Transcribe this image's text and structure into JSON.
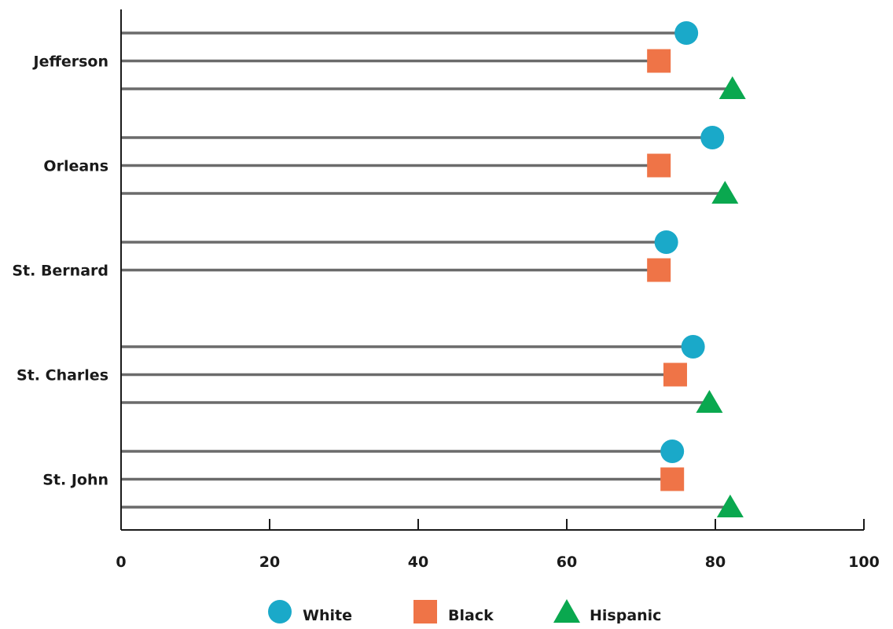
{
  "chart_data": {
    "type": "dot-plot",
    "title": "",
    "xlabel": "",
    "ylabel": "",
    "xlim": [
      0,
      100
    ],
    "x_ticks": [
      0,
      20,
      40,
      60,
      80,
      100
    ],
    "x_tick_labels": [
      "0",
      "20",
      "40",
      "60",
      "80",
      "100"
    ],
    "categories": [
      "Jefferson",
      "Orleans",
      "St. Bernard",
      "St. Charles",
      "St. John"
    ],
    "series": [
      {
        "name": "White",
        "marker": "circle",
        "color": "#1aa9c9",
        "values": [
          76.1,
          79.6,
          73.4,
          77.0,
          74.2
        ]
      },
      {
        "name": "Black",
        "marker": "square",
        "color": "#ef7447",
        "values": [
          72.4,
          72.4,
          72.4,
          74.6,
          74.2
        ]
      },
      {
        "name": "Hispanic",
        "marker": "triangle",
        "color": "#0aa84f",
        "values": [
          82.3,
          81.3,
          null,
          79.2,
          82.0
        ]
      }
    ],
    "legend_position": "bottom-center",
    "grid": false
  }
}
